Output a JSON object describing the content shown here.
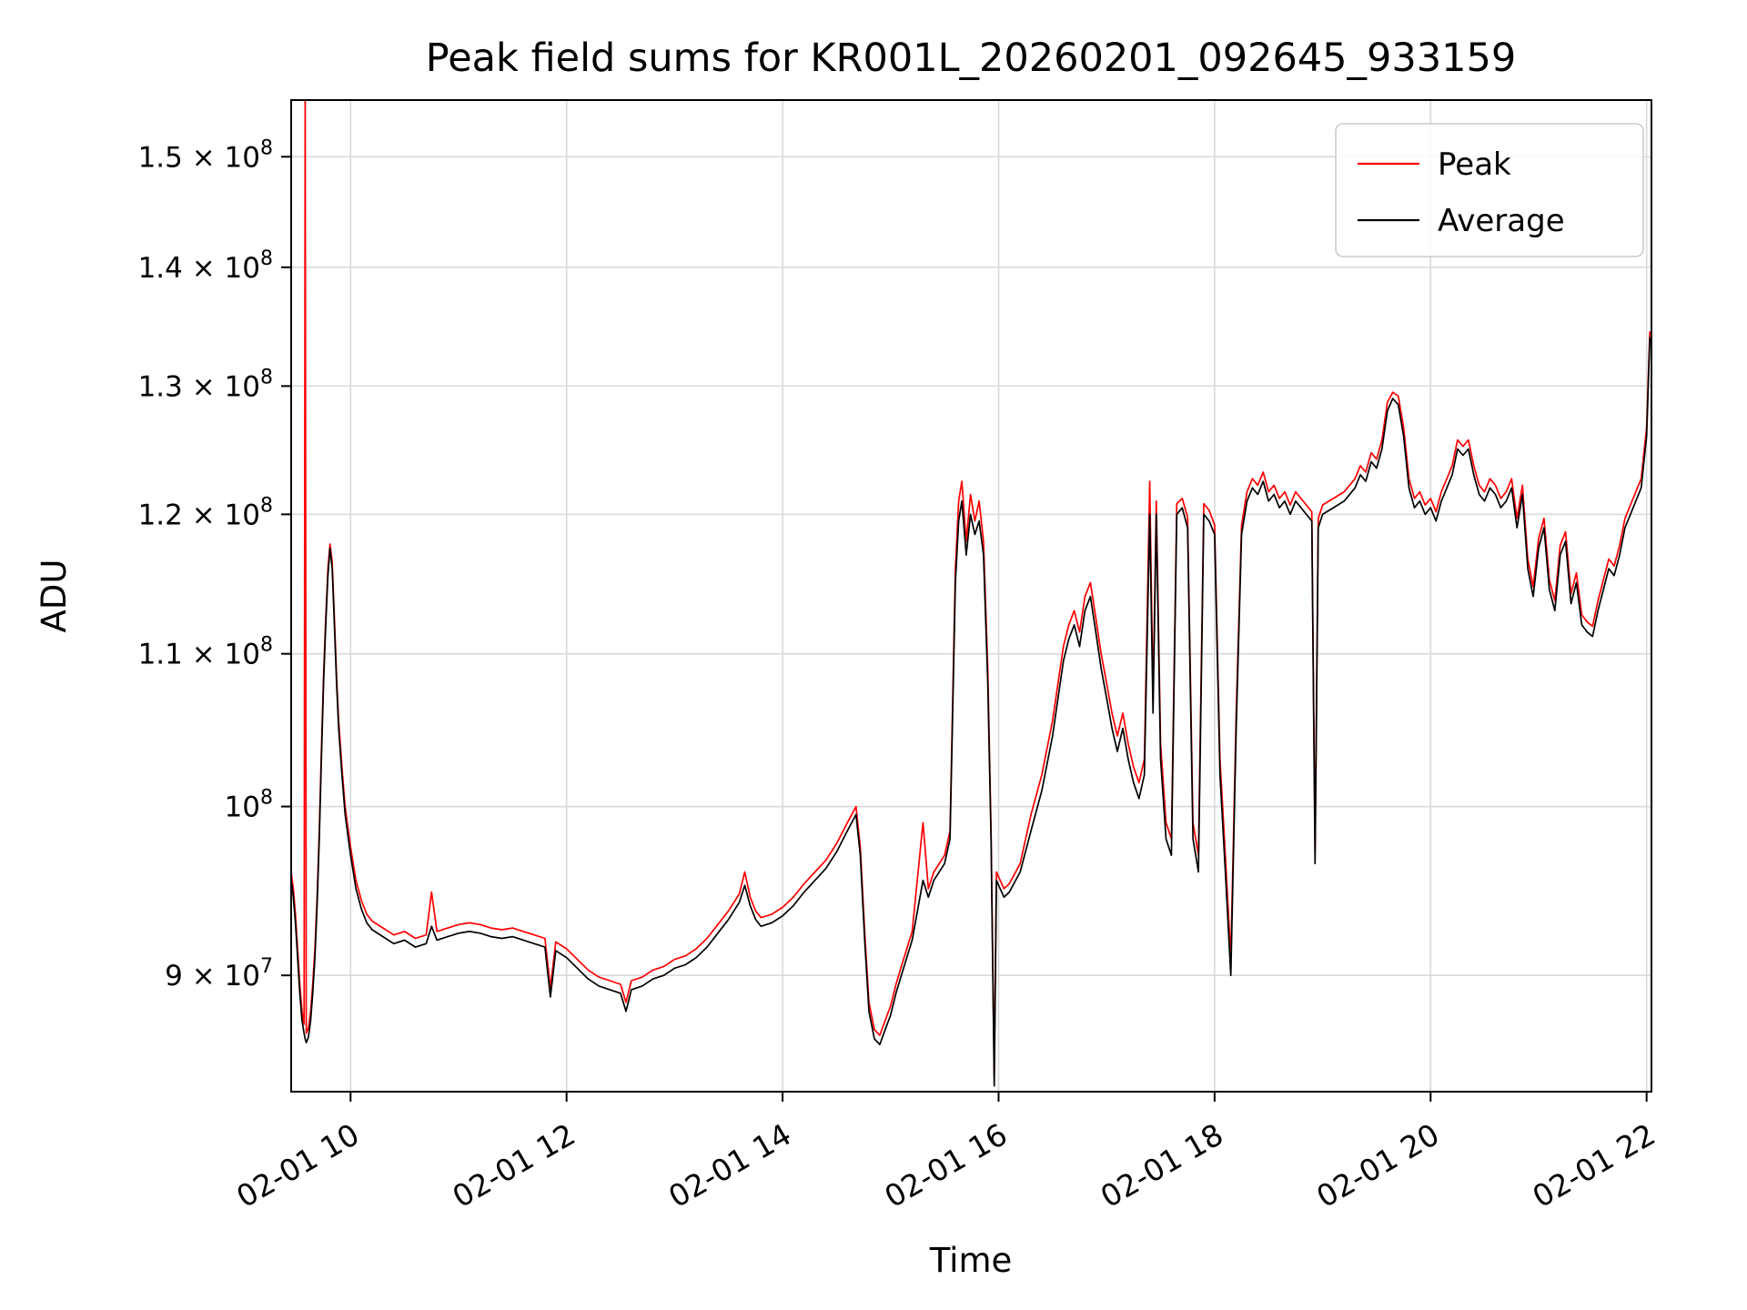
{
  "figure": {
    "background": "#ffffff",
    "grid_color": "#d9d9d9",
    "spine_color": "#000000",
    "legend_border_color": "#cccccc"
  },
  "chart_data": {
    "type": "line",
    "title": "Peak field sums for KR001L_20260201_092645_933159",
    "xlabel": "Time",
    "ylabel": "ADU",
    "yscale": "log",
    "grid": true,
    "legend": {
      "position": "upper right",
      "entries": [
        "Peak",
        "Average"
      ]
    },
    "x_unit": "decimal hours on 2026-02-01",
    "value_scale": 10000000,
    "xlim": [
      9.45,
      22.045
    ],
    "ylim": [
      83700000,
      155400000
    ],
    "x_ticks": [
      10,
      12,
      14,
      16,
      18,
      20,
      22
    ],
    "x_tick_labels": [
      "02-01 10",
      "02-01 12",
      "02-01 14",
      "02-01 16",
      "02-01 18",
      "02-01 20",
      "02-01 22"
    ],
    "y_ticks": [
      90000000,
      100000000,
      110000000,
      120000000,
      130000000,
      140000000,
      150000000
    ],
    "y_tick_labels": [
      "9 × 10^7",
      "10^8",
      "1.1 × 10^8",
      "1.2 × 10^8",
      "1.3 × 10^8",
      "1.4 × 10^8",
      "1.5 × 10^8"
    ],
    "x": [
      9.45,
      9.47,
      9.49,
      9.51,
      9.53,
      9.55,
      9.57,
      9.58,
      9.59,
      9.61,
      9.63,
      9.65,
      9.67,
      9.69,
      9.71,
      9.73,
      9.75,
      9.77,
      9.79,
      9.81,
      9.83,
      9.85,
      9.87,
      9.89,
      9.92,
      9.95,
      10.0,
      10.05,
      10.1,
      10.15,
      10.2,
      10.3,
      10.4,
      10.5,
      10.6,
      10.7,
      10.75,
      10.8,
      10.9,
      11.0,
      11.1,
      11.2,
      11.3,
      11.4,
      11.5,
      11.6,
      11.7,
      11.8,
      11.85,
      11.9,
      12.0,
      12.1,
      12.2,
      12.3,
      12.4,
      12.5,
      12.55,
      12.6,
      12.7,
      12.8,
      12.9,
      13.0,
      13.1,
      13.2,
      13.3,
      13.4,
      13.5,
      13.6,
      13.65,
      13.7,
      13.75,
      13.8,
      13.9,
      14.0,
      14.1,
      14.2,
      14.3,
      14.4,
      14.5,
      14.6,
      14.68,
      14.72,
      14.76,
      14.8,
      14.85,
      14.9,
      14.95,
      15.0,
      15.05,
      15.1,
      15.2,
      15.3,
      15.35,
      15.4,
      15.5,
      15.55,
      15.6,
      15.63,
      15.66,
      15.7,
      15.74,
      15.78,
      15.82,
      15.86,
      15.9,
      15.93,
      15.96,
      15.98,
      16.05,
      16.1,
      16.2,
      16.3,
      16.4,
      16.5,
      16.55,
      16.6,
      16.65,
      16.7,
      16.75,
      16.8,
      16.85,
      16.9,
      16.95,
      17.0,
      17.05,
      17.1,
      17.15,
      17.2,
      17.25,
      17.3,
      17.35,
      17.4,
      17.43,
      17.46,
      17.5,
      17.55,
      17.6,
      17.65,
      17.7,
      17.75,
      17.8,
      17.85,
      17.9,
      17.95,
      18.0,
      18.05,
      18.1,
      18.15,
      18.2,
      18.25,
      18.3,
      18.35,
      18.4,
      18.45,
      18.5,
      18.55,
      18.6,
      18.65,
      18.7,
      18.75,
      18.8,
      18.9,
      18.93,
      18.96,
      19.0,
      19.1,
      19.2,
      19.3,
      19.35,
      19.4,
      19.45,
      19.5,
      19.55,
      19.6,
      19.65,
      19.7,
      19.75,
      19.8,
      19.85,
      19.9,
      19.95,
      20.0,
      20.05,
      20.1,
      20.15,
      20.2,
      20.25,
      20.3,
      20.35,
      20.4,
      20.45,
      20.5,
      20.55,
      20.6,
      20.65,
      20.7,
      20.75,
      20.8,
      20.85,
      20.9,
      20.95,
      21.0,
      21.05,
      21.1,
      21.15,
      21.2,
      21.25,
      21.3,
      21.35,
      21.4,
      21.45,
      21.5,
      21.55,
      21.6,
      21.65,
      21.7,
      21.75,
      21.8,
      21.85,
      21.9,
      21.95,
      22.0,
      22.03
    ],
    "series": [
      {
        "name": "Peak",
        "color": "#ff0000",
        "values": [
          9.6,
          9.5,
          9.35,
          9.15,
          8.95,
          8.8,
          8.73,
          15.8,
          8.68,
          8.71,
          8.8,
          8.95,
          9.15,
          9.45,
          9.85,
          10.35,
          10.85,
          11.25,
          11.6,
          11.78,
          11.65,
          11.25,
          10.85,
          10.55,
          10.25,
          10.0,
          9.75,
          9.55,
          9.43,
          9.35,
          9.31,
          9.27,
          9.23,
          9.25,
          9.21,
          9.23,
          9.48,
          9.25,
          9.27,
          9.29,
          9.3,
          9.29,
          9.27,
          9.26,
          9.27,
          9.25,
          9.23,
          9.21,
          8.93,
          9.19,
          9.15,
          9.09,
          9.03,
          8.99,
          8.97,
          8.95,
          8.85,
          8.97,
          8.99,
          9.03,
          9.05,
          9.09,
          9.11,
          9.15,
          9.21,
          9.29,
          9.37,
          9.47,
          9.6,
          9.45,
          9.37,
          9.33,
          9.35,
          9.39,
          9.45,
          9.53,
          9.6,
          9.67,
          9.77,
          9.9,
          10.0,
          9.75,
          9.25,
          8.85,
          8.7,
          8.67,
          8.75,
          8.83,
          8.95,
          9.05,
          9.25,
          9.9,
          9.5,
          9.6,
          9.7,
          9.85,
          11.6,
          12.1,
          12.25,
          11.8,
          12.15,
          11.95,
          12.1,
          11.8,
          10.9,
          9.85,
          8.45,
          9.6,
          9.5,
          9.53,
          9.65,
          9.95,
          10.2,
          10.55,
          10.8,
          11.05,
          11.2,
          11.3,
          11.15,
          11.4,
          11.5,
          11.25,
          11.0,
          10.8,
          10.6,
          10.45,
          10.6,
          10.4,
          10.25,
          10.15,
          10.3,
          12.25,
          10.7,
          12.1,
          10.4,
          9.9,
          9.8,
          12.08,
          12.12,
          11.98,
          9.9,
          9.7,
          12.08,
          12.03,
          11.92,
          10.3,
          9.7,
          9.1,
          10.6,
          11.92,
          12.17,
          12.27,
          12.22,
          12.32,
          12.17,
          12.22,
          12.12,
          12.17,
          12.07,
          12.17,
          12.12,
          12.02,
          9.72,
          11.97,
          12.07,
          12.12,
          12.17,
          12.27,
          12.37,
          12.32,
          12.47,
          12.42,
          12.57,
          12.87,
          12.95,
          12.92,
          12.67,
          12.27,
          12.12,
          12.17,
          12.07,
          12.12,
          12.02,
          12.17,
          12.27,
          12.37,
          12.57,
          12.52,
          12.57,
          12.37,
          12.22,
          12.17,
          12.27,
          12.22,
          12.12,
          12.17,
          12.27,
          11.97,
          12.22,
          11.67,
          11.47,
          11.82,
          11.97,
          11.52,
          11.37,
          11.77,
          11.87,
          11.42,
          11.57,
          11.27,
          11.22,
          11.19,
          11.37,
          11.52,
          11.67,
          11.62,
          11.77,
          11.97,
          12.07,
          12.17,
          12.27,
          12.67,
          13.45
        ]
      },
      {
        "name": "Average",
        "color": "#000000",
        "values": [
          9.55,
          9.45,
          9.3,
          9.1,
          8.9,
          8.75,
          8.68,
          8.65,
          8.63,
          8.66,
          8.75,
          8.9,
          9.1,
          9.4,
          9.8,
          10.3,
          10.8,
          11.2,
          11.55,
          11.75,
          11.6,
          11.2,
          10.8,
          10.5,
          10.2,
          9.95,
          9.7,
          9.5,
          9.38,
          9.3,
          9.26,
          9.22,
          9.18,
          9.2,
          9.16,
          9.18,
          9.28,
          9.2,
          9.22,
          9.24,
          9.25,
          9.24,
          9.22,
          9.21,
          9.22,
          9.2,
          9.18,
          9.16,
          8.88,
          9.14,
          9.1,
          9.04,
          8.98,
          8.94,
          8.92,
          8.9,
          8.8,
          8.92,
          8.94,
          8.98,
          9.0,
          9.04,
          9.06,
          9.1,
          9.16,
          9.24,
          9.32,
          9.42,
          9.52,
          9.4,
          9.32,
          9.28,
          9.3,
          9.34,
          9.4,
          9.48,
          9.55,
          9.62,
          9.72,
          9.85,
          9.95,
          9.7,
          9.2,
          8.8,
          8.65,
          8.62,
          8.7,
          8.78,
          8.9,
          9.0,
          9.2,
          9.55,
          9.45,
          9.55,
          9.65,
          9.8,
          11.5,
          11.95,
          12.1,
          11.7,
          12.0,
          11.85,
          11.95,
          11.7,
          10.8,
          9.8,
          8.4,
          9.55,
          9.45,
          9.48,
          9.6,
          9.85,
          10.1,
          10.45,
          10.7,
          10.95,
          11.1,
          11.2,
          11.05,
          11.3,
          11.4,
          11.15,
          10.9,
          10.7,
          10.5,
          10.35,
          10.5,
          10.3,
          10.15,
          10.05,
          10.2,
          12.0,
          10.6,
          12.0,
          10.3,
          9.8,
          9.7,
          12.0,
          12.05,
          11.9,
          9.8,
          9.6,
          12.0,
          11.95,
          11.85,
          10.2,
          9.6,
          9.0,
          10.5,
          11.85,
          12.1,
          12.2,
          12.15,
          12.25,
          12.1,
          12.15,
          12.05,
          12.1,
          12.0,
          12.1,
          12.05,
          11.95,
          9.65,
          11.9,
          12.0,
          12.05,
          12.1,
          12.2,
          12.3,
          12.25,
          12.4,
          12.35,
          12.5,
          12.8,
          12.9,
          12.85,
          12.6,
          12.2,
          12.05,
          12.1,
          12.0,
          12.05,
          11.95,
          12.1,
          12.2,
          12.3,
          12.5,
          12.45,
          12.5,
          12.3,
          12.15,
          12.1,
          12.2,
          12.15,
          12.05,
          12.1,
          12.2,
          11.9,
          12.15,
          11.6,
          11.4,
          11.75,
          11.9,
          11.45,
          11.3,
          11.7,
          11.8,
          11.35,
          11.5,
          11.2,
          11.15,
          11.12,
          11.3,
          11.45,
          11.6,
          11.55,
          11.7,
          11.9,
          12.0,
          12.1,
          12.2,
          12.6,
          13.4
        ]
      }
    ]
  }
}
